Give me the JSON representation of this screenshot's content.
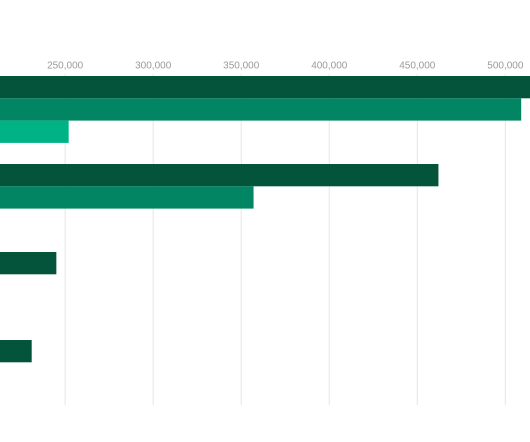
{
  "chart_data": {
    "type": "hbar",
    "categories": [
      null,
      null,
      null,
      null
    ],
    "series": [
      {
        "color": "#03543a",
        "values": [
          520000,
          462000,
          245000,
          231000
        ]
      },
      {
        "color": "#018562",
        "values": [
          509000,
          357000,
          null,
          null
        ]
      },
      {
        "color": "#00b386",
        "values": [
          252000,
          null,
          null,
          null
        ]
      }
    ],
    "xlim": [
      213000,
      514000
    ],
    "xticks": [
      {
        "value": 250000,
        "label": "250,000"
      },
      {
        "value": 300000,
        "label": "300,000"
      },
      {
        "value": 350000,
        "label": "350,000"
      },
      {
        "value": 400000,
        "label": "400,000"
      },
      {
        "value": 450000,
        "label": "450,000"
      },
      {
        "value": 500000,
        "label": "500,000"
      }
    ],
    "grid": true
  }
}
